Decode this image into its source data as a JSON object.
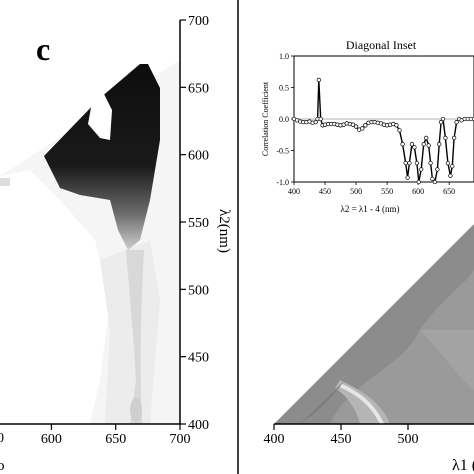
{
  "panel_label": "c",
  "chart_data": [
    {
      "type": "heatmap",
      "description": "2D correlation map, left panel (cropped)",
      "ylabel": "λ2(nm)",
      "x_ticks": [
        600,
        650,
        700
      ],
      "y_ticks": [
        400,
        450,
        500,
        550,
        600,
        650,
        700
      ],
      "xlim": [
        560,
        700
      ],
      "ylim": [
        400,
        700
      ],
      "cropped_left_tick": "0",
      "cropped_left_label": "o"
    },
    {
      "type": "line",
      "title": "Diagonal Inset",
      "xlabel": "λ2 = λ1 - 4 (nm)",
      "ylabel": "Correlation Coefficient",
      "xlim": [
        400,
        690
      ],
      "ylim": [
        -1.0,
        1.0
      ],
      "x_ticks": [
        400,
        450,
        500,
        550,
        600,
        650
      ],
      "y_ticks": [
        "1.0",
        "0.5",
        "0.0",
        "-0.5",
        "-1.0"
      ],
      "x": [
        400,
        405,
        410,
        415,
        420,
        425,
        430,
        435,
        438,
        440,
        443,
        446,
        450,
        455,
        460,
        465,
        470,
        475,
        480,
        485,
        490,
        495,
        500,
        505,
        510,
        515,
        520,
        525,
        530,
        535,
        540,
        545,
        550,
        555,
        560,
        565,
        570,
        575,
        580,
        583,
        586,
        590,
        594,
        598,
        601,
        605,
        609,
        613,
        617,
        620,
        623,
        627,
        631,
        634,
        637,
        640,
        644,
        648,
        652,
        655,
        658,
        662,
        666,
        670,
        675,
        680,
        685,
        690
      ],
      "y": [
        0.0,
        -0.02,
        -0.04,
        -0.05,
        -0.05,
        -0.04,
        -0.06,
        -0.05,
        0.0,
        0.62,
        0.0,
        -0.1,
        -0.09,
        -0.08,
        -0.08,
        -0.08,
        -0.09,
        -0.1,
        -0.09,
        -0.07,
        -0.08,
        -0.09,
        -0.12,
        -0.17,
        -0.15,
        -0.1,
        -0.06,
        -0.05,
        -0.05,
        -0.06,
        -0.07,
        -0.09,
        -0.1,
        -0.09,
        -0.08,
        -0.1,
        -0.18,
        -0.4,
        -0.7,
        -0.93,
        -0.7,
        -0.4,
        -0.45,
        -0.7,
        -1.0,
        -0.8,
        -0.4,
        -0.3,
        -0.42,
        -0.7,
        -0.95,
        -1.0,
        -0.8,
        -0.4,
        -0.05,
        0.0,
        -0.3,
        -0.7,
        -0.9,
        -0.75,
        -0.3,
        -0.05,
        0.0,
        -0.02,
        0.0,
        0.0,
        0.0,
        0.0
      ]
    },
    {
      "type": "heatmap",
      "description": "2D correlation map, right panel (cropped)",
      "xlabel": "λ1 (",
      "x_ticks": [
        400,
        450,
        500
      ],
      "xlim": [
        400,
        600
      ]
    }
  ]
}
